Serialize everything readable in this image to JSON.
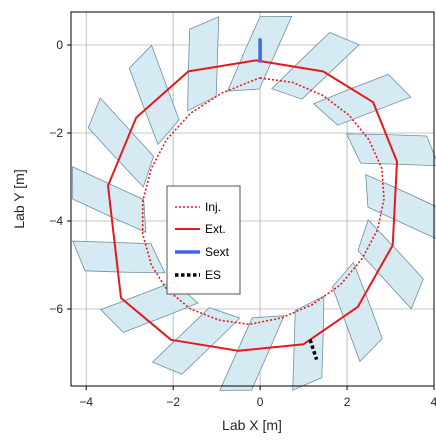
{
  "chart_data": {
    "type": "line",
    "title": "",
    "xlabel": "Lab X [m]",
    "ylabel": "Lab Y [m]",
    "xlim": [
      -4.35,
      4.0
    ],
    "ylim": [
      -7.75,
      0.75
    ],
    "x_ticks": [
      -4,
      -2,
      0,
      2,
      4
    ],
    "y_ticks": [
      0,
      -2,
      -4,
      -6
    ],
    "grid": true,
    "legend_position": "center",
    "series": [
      {
        "name": "Inj.",
        "style": "dotted",
        "color": "#e31a1c",
        "x": [
          0.0,
          0.75,
          1.45,
          2.05,
          2.5,
          2.8,
          2.85,
          2.7,
          2.35,
          1.85,
          1.2,
          0.5,
          -0.25,
          -0.95,
          -1.6,
          -2.15,
          -2.5,
          -2.7,
          -2.7,
          -2.5,
          -2.15,
          -1.6,
          -0.9,
          -0.15,
          0.0
        ],
        "y": [
          -0.75,
          -0.85,
          -1.15,
          -1.6,
          -2.15,
          -2.8,
          -3.5,
          -4.2,
          -4.85,
          -5.45,
          -5.9,
          -6.2,
          -6.35,
          -6.25,
          -6.0,
          -5.55,
          -5.0,
          -4.3,
          -3.55,
          -2.8,
          -2.15,
          -1.55,
          -1.1,
          -0.8,
          -0.75
        ]
      },
      {
        "name": "Ext.",
        "style": "solid",
        "color": "#e31a1c",
        "x": [
          -0.1,
          1.45,
          2.6,
          3.15,
          3.05,
          2.25,
          1.0,
          -0.5,
          -2.05,
          -3.2,
          -3.5,
          -2.85,
          -1.65,
          -0.1
        ],
        "y": [
          -0.35,
          -0.6,
          -1.3,
          -2.65,
          -4.55,
          -5.95,
          -6.8,
          -6.95,
          -6.7,
          -5.75,
          -3.2,
          -1.65,
          -0.6,
          -0.35
        ]
      },
      {
        "name": "Sext",
        "style": "solid-thick",
        "color": "#4169e1",
        "x": [
          0.0,
          0.0
        ],
        "y": [
          -0.4,
          0.15
        ]
      },
      {
        "name": "ES",
        "style": "dotted-thick",
        "color": "#000000",
        "x": [
          1.15,
          1.3
        ],
        "y": [
          -6.7,
          -7.15
        ]
      }
    ],
    "magnets": {
      "count": 16,
      "fill": "#d4e9f2",
      "edge": "#6f8fa3",
      "center": [
        -0.1,
        -3.6
      ]
    }
  }
}
